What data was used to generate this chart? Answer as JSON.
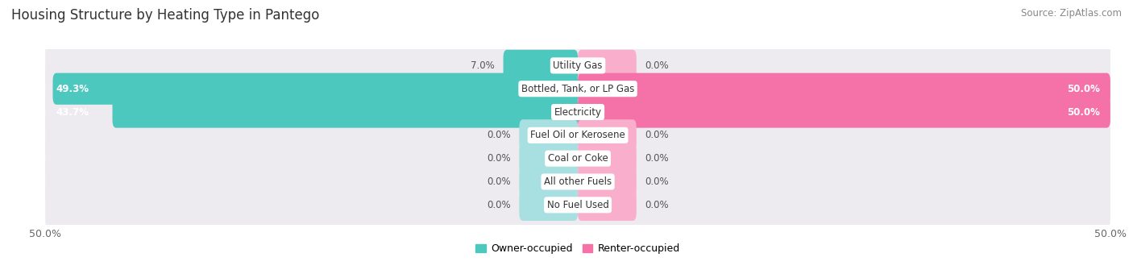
{
  "title": "Housing Structure by Heating Type in Pantego",
  "source": "Source: ZipAtlas.com",
  "categories": [
    "Utility Gas",
    "Bottled, Tank, or LP Gas",
    "Electricity",
    "Fuel Oil or Kerosene",
    "Coal or Coke",
    "All other Fuels",
    "No Fuel Used"
  ],
  "owner_values": [
    7.0,
    49.3,
    43.7,
    0.0,
    0.0,
    0.0,
    0.0
  ],
  "renter_values": [
    0.0,
    50.0,
    50.0,
    0.0,
    0.0,
    0.0,
    0.0
  ],
  "owner_color": "#4DC8BF",
  "owner_color_light": "#A8DFE0",
  "renter_color": "#F472A8",
  "renter_color_light": "#F9AECB",
  "bar_bg_color": "#EDEAF0",
  "axis_min": -50.0,
  "axis_max": 50.0,
  "stub_size": 5.5,
  "title_fontsize": 12,
  "source_fontsize": 8.5,
  "label_fontsize": 8.5,
  "value_fontsize": 8.5,
  "legend_fontsize": 9
}
